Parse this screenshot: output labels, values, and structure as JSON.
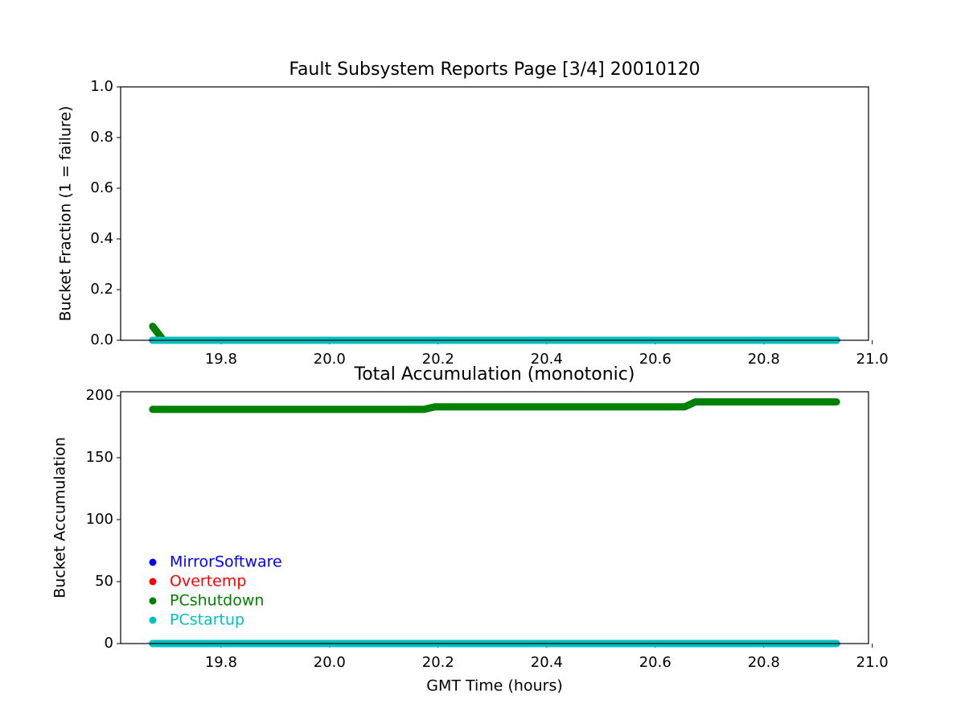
{
  "chart_data": [
    {
      "type": "line",
      "title": "Fault Subsystem Reports Page [3/4] 20010120",
      "y_label": "Bucket Fraction (1 = failure)",
      "x": [
        19.674,
        19.694,
        19.714,
        19.734,
        19.754,
        19.774,
        19.794,
        19.814,
        19.834,
        19.854,
        19.874,
        19.894,
        19.914,
        19.934,
        19.954,
        19.974,
        19.994,
        20.014,
        20.034,
        20.054,
        20.074,
        20.094,
        20.114,
        20.134,
        20.154,
        20.174,
        20.194,
        20.214,
        20.234,
        20.254,
        20.274,
        20.294,
        20.314,
        20.334,
        20.354,
        20.374,
        20.394,
        20.414,
        20.434,
        20.454,
        20.474,
        20.494,
        20.514,
        20.534,
        20.554,
        20.574,
        20.594,
        20.614,
        20.634,
        20.654,
        20.674,
        20.694,
        20.714,
        20.734,
        20.754,
        20.774,
        20.794,
        20.814,
        20.834,
        20.854,
        20.874,
        20.894,
        20.914,
        20.934
      ],
      "series": [
        {
          "color": "#0000ff",
          "values": [
            0,
            0,
            0,
            0,
            0,
            0,
            0,
            0,
            0,
            0,
            0,
            0,
            0,
            0,
            0,
            0,
            0,
            0,
            0,
            0,
            0,
            0,
            0,
            0,
            0,
            0,
            0,
            0,
            0,
            0,
            0,
            0,
            0,
            0,
            0,
            0,
            0,
            0,
            0,
            0,
            0,
            0,
            0,
            0,
            0,
            0,
            0,
            0,
            0,
            0,
            0,
            0,
            0,
            0,
            0,
            0,
            0,
            0,
            0,
            0,
            0,
            0,
            0,
            0
          ]
        },
        {
          "color": "#ff0000",
          "values": [
            0,
            0,
            0,
            0,
            0,
            0,
            0,
            0,
            0,
            0,
            0,
            0,
            0,
            0,
            0,
            0,
            0,
            0,
            0,
            0,
            0,
            0,
            0,
            0,
            0,
            0,
            0,
            0,
            0,
            0,
            0,
            0,
            0,
            0,
            0,
            0,
            0,
            0,
            0,
            0,
            0,
            0,
            0,
            0,
            0,
            0,
            0,
            0,
            0,
            0,
            0,
            0,
            0,
            0,
            0,
            0,
            0,
            0,
            0,
            0,
            0,
            0,
            0,
            0
          ]
        },
        {
          "color": "#008000",
          "values": [
            0.055,
            0,
            0,
            0,
            0,
            0,
            0,
            0,
            0,
            0,
            0,
            0,
            0,
            0,
            0,
            0,
            0,
            0,
            0,
            0,
            0,
            0,
            0,
            0,
            0,
            0,
            0,
            0,
            0,
            0,
            0,
            0,
            0,
            0,
            0,
            0,
            0,
            0,
            0,
            0,
            0,
            0,
            0,
            0,
            0,
            0,
            0,
            0,
            0,
            0,
            0,
            0,
            0,
            0,
            0,
            0,
            0,
            0,
            0,
            0,
            0,
            0,
            0,
            0
          ]
        },
        {
          "color": "#00bfbf",
          "values": [
            0,
            0,
            0,
            0,
            0,
            0,
            0,
            0,
            0,
            0,
            0,
            0,
            0,
            0,
            0,
            0,
            0,
            0,
            0,
            0,
            0,
            0,
            0,
            0,
            0,
            0,
            0,
            0,
            0,
            0,
            0,
            0,
            0,
            0,
            0,
            0,
            0,
            0,
            0,
            0,
            0,
            0,
            0,
            0,
            0,
            0,
            0,
            0,
            0,
            0,
            0,
            0,
            0,
            0,
            0,
            0,
            0,
            0,
            0,
            0,
            0,
            0,
            0,
            0
          ]
        }
      ],
      "xlim": [
        19.615,
        20.993
      ],
      "xticks": [
        19.8,
        {
          "value": 20,
          "label": "20.0"
        },
        20.2,
        20.4,
        20.6,
        20.8,
        {
          "value": 21,
          "label": "21.0"
        }
      ],
      "ylim": [
        0,
        1
      ],
      "yticks": [
        {
          "value": 0,
          "label": "0.0"
        },
        0.2,
        0.4,
        0.6,
        0.8,
        {
          "value": 1,
          "label": "1.0"
        }
      ]
    },
    {
      "type": "line",
      "title": "Total Accumulation (monotonic)",
      "x_label": "GMT Time (hours)",
      "y_label": "Bucket Accumulation",
      "x": [
        19.674,
        19.694,
        19.714,
        19.734,
        19.754,
        19.774,
        19.794,
        19.814,
        19.834,
        19.854,
        19.874,
        19.894,
        19.914,
        19.934,
        19.954,
        19.974,
        19.994,
        20.014,
        20.034,
        20.054,
        20.074,
        20.094,
        20.114,
        20.134,
        20.154,
        20.174,
        20.194,
        20.214,
        20.234,
        20.254,
        20.274,
        20.294,
        20.314,
        20.334,
        20.354,
        20.374,
        20.394,
        20.414,
        20.434,
        20.454,
        20.474,
        20.494,
        20.514,
        20.534,
        20.554,
        20.574,
        20.594,
        20.614,
        20.634,
        20.654,
        20.674,
        20.694,
        20.714,
        20.734,
        20.754,
        20.774,
        20.794,
        20.814,
        20.834,
        20.854,
        20.874,
        20.894,
        20.914,
        20.934
      ],
      "series": [
        {
          "name": "MirrorSoftware",
          "color": "#0000ff",
          "values": [
            0,
            0,
            0,
            0,
            0,
            0,
            0,
            0,
            0,
            0,
            0,
            0,
            0,
            0,
            0,
            0,
            0,
            0,
            0,
            0,
            0,
            0,
            0,
            0,
            0,
            0,
            0,
            0,
            0,
            0,
            0,
            0,
            0,
            0,
            0,
            0,
            0,
            0,
            0,
            0,
            0,
            0,
            0,
            0,
            0,
            0,
            0,
            0,
            0,
            0,
            0,
            0,
            0,
            0,
            0,
            0,
            0,
            0,
            0,
            0,
            0,
            0,
            0,
            0
          ]
        },
        {
          "name": "Overtemp",
          "color": "#ff0000",
          "values": [
            0,
            0,
            0,
            0,
            0,
            0,
            0,
            0,
            0,
            0,
            0,
            0,
            0,
            0,
            0,
            0,
            0,
            0,
            0,
            0,
            0,
            0,
            0,
            0,
            0,
            0,
            0,
            0,
            0,
            0,
            0,
            0,
            0,
            0,
            0,
            0,
            0,
            0,
            0,
            0,
            0,
            0,
            0,
            0,
            0,
            0,
            0,
            0,
            0,
            0,
            0,
            0,
            0,
            0,
            0,
            0,
            0,
            0,
            0,
            0,
            0,
            0,
            0,
            0
          ]
        },
        {
          "name": "PCshutdown",
          "color": "#008000",
          "values": [
            189,
            189,
            189,
            189,
            189,
            189,
            189,
            189,
            189,
            189,
            189,
            189,
            189,
            189,
            189,
            189,
            189,
            189,
            189,
            189,
            189,
            189,
            189,
            189,
            189,
            189,
            191,
            191,
            191,
            191,
            191,
            191,
            191,
            191,
            191,
            191,
            191,
            191,
            191,
            191,
            191,
            191,
            191,
            191,
            191,
            191,
            191,
            191,
            191,
            191,
            195,
            195,
            195,
            195,
            195,
            195,
            195,
            195,
            195,
            195,
            195,
            195,
            195,
            195
          ]
        },
        {
          "name": "PCstartup",
          "color": "#00bfbf",
          "values": [
            0,
            0,
            0,
            0,
            0,
            0,
            0,
            0,
            0,
            0,
            0,
            0,
            0,
            0,
            0,
            0,
            0,
            0,
            0,
            0,
            0,
            0,
            0,
            0,
            0,
            0,
            0,
            0,
            0,
            0,
            0,
            0,
            0,
            0,
            0,
            0,
            0,
            0,
            0,
            0,
            0,
            0,
            0,
            0,
            0,
            0,
            0,
            0,
            0,
            0,
            0,
            0,
            0,
            0,
            0,
            0,
            0,
            0,
            0,
            0,
            0,
            0,
            0,
            0
          ]
        }
      ],
      "xlim": [
        19.615,
        20.993
      ],
      "xticks": [
        19.8,
        {
          "value": 20,
          "label": "20.0"
        },
        20.2,
        20.4,
        20.6,
        20.8,
        {
          "value": 21,
          "label": "21.0"
        }
      ],
      "ylim": [
        0,
        203.2
      ],
      "yticks": [
        0,
        50,
        100,
        150,
        200
      ],
      "legend": "lower left"
    }
  ]
}
